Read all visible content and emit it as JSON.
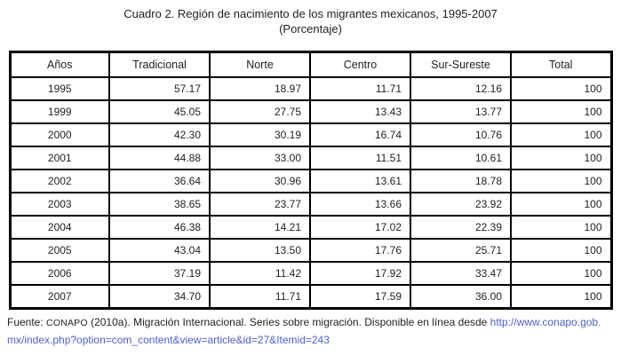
{
  "title": {
    "line1": "Cuadro 2. Región de nacimiento de los migrantes mexicanos, 1995-2007",
    "line2": "(Porcentaje)"
  },
  "table": {
    "columns": [
      "Años",
      "Tradicional",
      "Norte",
      "Centro",
      "Sur-Sureste",
      "Total"
    ],
    "rows": [
      [
        "1995",
        "57.17",
        "18.97",
        "11.71",
        "12.16",
        "100"
      ],
      [
        "1999",
        "45.05",
        "27.75",
        "13.43",
        "13.77",
        "100"
      ],
      [
        "2000",
        "42.30",
        "30.19",
        "16.74",
        "10.76",
        "100"
      ],
      [
        "2001",
        "44.88",
        "33.00",
        "11.51",
        "10.61",
        "100"
      ],
      [
        "2002",
        "36.64",
        "30.96",
        "13.61",
        "18.78",
        "100"
      ],
      [
        "2003",
        "38.65",
        "23.77",
        "13.66",
        "23.92",
        "100"
      ],
      [
        "2004",
        "46.38",
        "14.21",
        "17.02",
        "22.39",
        "100"
      ],
      [
        "2005",
        "43.04",
        "13.50",
        "17.76",
        "25.71",
        "100"
      ],
      [
        "2006",
        "37.19",
        "11.42",
        "17.92",
        "33.47",
        "100"
      ],
      [
        "2007",
        "34.70",
        "11.71",
        "17.59",
        "36.00",
        "100"
      ]
    ]
  },
  "footer": {
    "prefix": "Fuente: ",
    "org": "CONAPO",
    "text_after_org": " (2010a). Migración Internacional. Series sobre migración. Disponible en línea desde ",
    "link_line1": "http://www.conapo.gob.",
    "link_line2": "mx/index.php?option=com_content&view=article&id=27&Itemid=243"
  },
  "colors": {
    "text": "#1f1f1f",
    "border": "#000000",
    "link": "#4e5fd0",
    "background": "#ffffff"
  }
}
